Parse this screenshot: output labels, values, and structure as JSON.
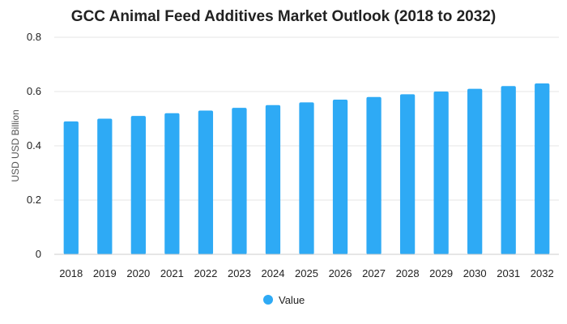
{
  "chart_data": {
    "type": "bar",
    "title": "GCC Animal Feed Additives Market Outlook (2018 to 2032)",
    "xlabel": "",
    "ylabel": "USD USD Billion",
    "categories": [
      "2018",
      "2019",
      "2020",
      "2021",
      "2022",
      "2023",
      "2024",
      "2025",
      "2026",
      "2027",
      "2028",
      "2029",
      "2030",
      "2031",
      "2032"
    ],
    "series": [
      {
        "name": "Value",
        "color": "#2eaaf5",
        "values": [
          0.49,
          0.5,
          0.51,
          0.52,
          0.53,
          0.54,
          0.55,
          0.56,
          0.57,
          0.58,
          0.59,
          0.6,
          0.61,
          0.62,
          0.63
        ]
      }
    ],
    "ylim": [
      0,
      0.8
    ],
    "yticks": [
      "0",
      "0.2",
      "0.4",
      "0.6",
      "0.8"
    ],
    "grid": true,
    "legend": "bottom-center"
  }
}
